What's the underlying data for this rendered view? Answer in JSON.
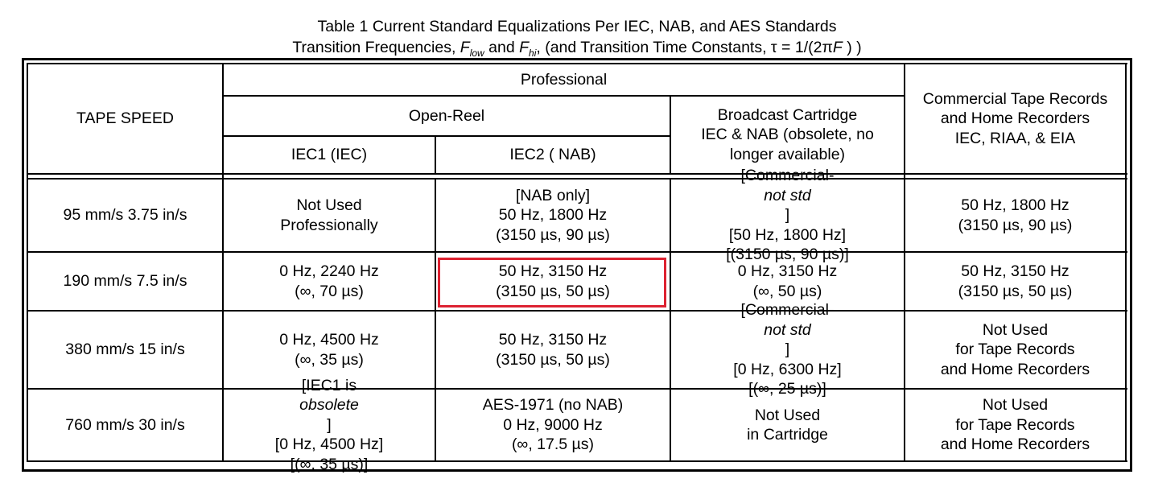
{
  "caption": {
    "line1": "Table 1 Current Standard Equalizations Per IEC, NAB, and AES Standards",
    "line2_a": "Transition Frequencies, ",
    "f_low_F": "F",
    "f_low_sub": "low",
    "line2_and": " and ",
    "f_hi_F": "F",
    "f_hi_sub": "hi",
    "line2_b": ", (and Transition Time Constants, τ = 1/(2π",
    "line2_F": "F",
    "line2_c": " ) )"
  },
  "header": {
    "tape_speed": "TAPE SPEED",
    "professional": "Professional",
    "open_reel": "Open-Reel",
    "iec1": "IEC1 (IEC)",
    "iec2": "IEC2 ( NAB)",
    "broadcast": [
      "Broadcast Cartridge",
      "IEC & NAB (obsolete, no",
      "longer available)"
    ],
    "commercial": [
      "Commercial Tape Records",
      "and Home Recorders",
      "IEC, RIAA, & EIA"
    ]
  },
  "rows": [
    {
      "speed": "95 mm/s 3.75 in/s",
      "iec1": [
        "Not Used",
        "Professionally"
      ],
      "iec2": [
        "[NAB only]",
        "50 Hz, 1800 Hz",
        "(3150 µs, 90 µs)"
      ],
      "broadcast_pre": "[Commercial-",
      "broadcast_em": "not std",
      "broadcast_post": "]",
      "broadcast": [
        "[50 Hz, 1800 Hz]",
        "[(3150 µs, 90 µs)]"
      ],
      "commercial": [
        "50 Hz, 1800 Hz",
        "(3150 µs, 90 µs)"
      ]
    },
    {
      "speed": "190 mm/s 7.5 in/s",
      "iec1": [
        "0 Hz, 2240 Hz",
        "(∞, 70 µs)"
      ],
      "iec2": [
        "50 Hz, 3150 Hz",
        "(3150 µs, 50 µs)"
      ],
      "broadcast": [
        "0 Hz, 3150 Hz",
        "(∞, 50 µs)"
      ],
      "commercial": [
        "50 Hz, 3150 Hz",
        "(3150 µs, 50 µs)"
      ]
    },
    {
      "speed": "380 mm/s  15 in/s",
      "iec1": [
        "0 Hz, 4500 Hz",
        "(∞, 35 µs)"
      ],
      "iec2": [
        "50 Hz, 3150 Hz",
        "(3150 µs, 50 µs)"
      ],
      "broadcast_pre": "[Commercial-",
      "broadcast_em": "not std",
      "broadcast_post": "]",
      "broadcast": [
        "[0 Hz, 6300 Hz]",
        "[(∞, 25 µs)]"
      ],
      "commercial": [
        "Not Used",
        "for Tape Records",
        "and Home Recorders"
      ]
    },
    {
      "speed": "760 mm/s  30 in/s",
      "iec1_pre": "[IEC1 is ",
      "iec1_em": "obsolete",
      "iec1_post": "]",
      "iec1": [
        "[0 Hz, 4500 Hz]",
        "[(∞, 35 µs)]"
      ],
      "iec2": [
        "AES-1971 (no NAB)",
        "0 Hz, 9000 Hz",
        "(∞, 17.5 µs)"
      ],
      "broadcast": [
        "Not Used",
        "in Cartridge"
      ],
      "commercial": [
        "Not Used",
        "for Tape Records",
        "and Home Recorders"
      ]
    }
  ],
  "colors": {
    "highlight": "#dd2231",
    "rule": "#000000"
  }
}
